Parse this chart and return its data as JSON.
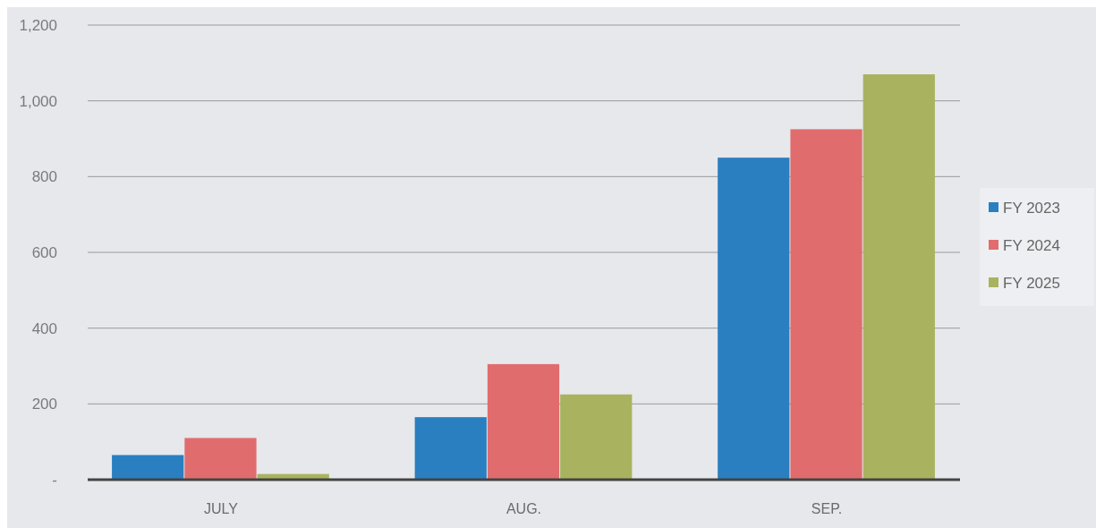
{
  "chart_data": {
    "type": "bar",
    "categories": [
      "JULY",
      "AUG.",
      "SEP."
    ],
    "series": [
      {
        "name": "FY 2023",
        "color": "#2a7fc0",
        "values": [
          65,
          165,
          850
        ]
      },
      {
        "name": "FY 2024",
        "color": "#e06c6e",
        "values": [
          110,
          305,
          925
        ]
      },
      {
        "name": "FY 2025",
        "color": "#a9b35f",
        "values": [
          15,
          225,
          1070
        ]
      }
    ],
    "ylim": [
      0,
      1200
    ],
    "yticks": [
      {
        "value": 0,
        "label": "-"
      },
      {
        "value": 200,
        "label": "200"
      },
      {
        "value": 400,
        "label": "400"
      },
      {
        "value": 600,
        "label": "600"
      },
      {
        "value": 800,
        "label": "800"
      },
      {
        "value": 1000,
        "label": "1,000"
      },
      {
        "value": 1200,
        "label": "1,200"
      }
    ],
    "grid": "y",
    "legend": "right"
  }
}
